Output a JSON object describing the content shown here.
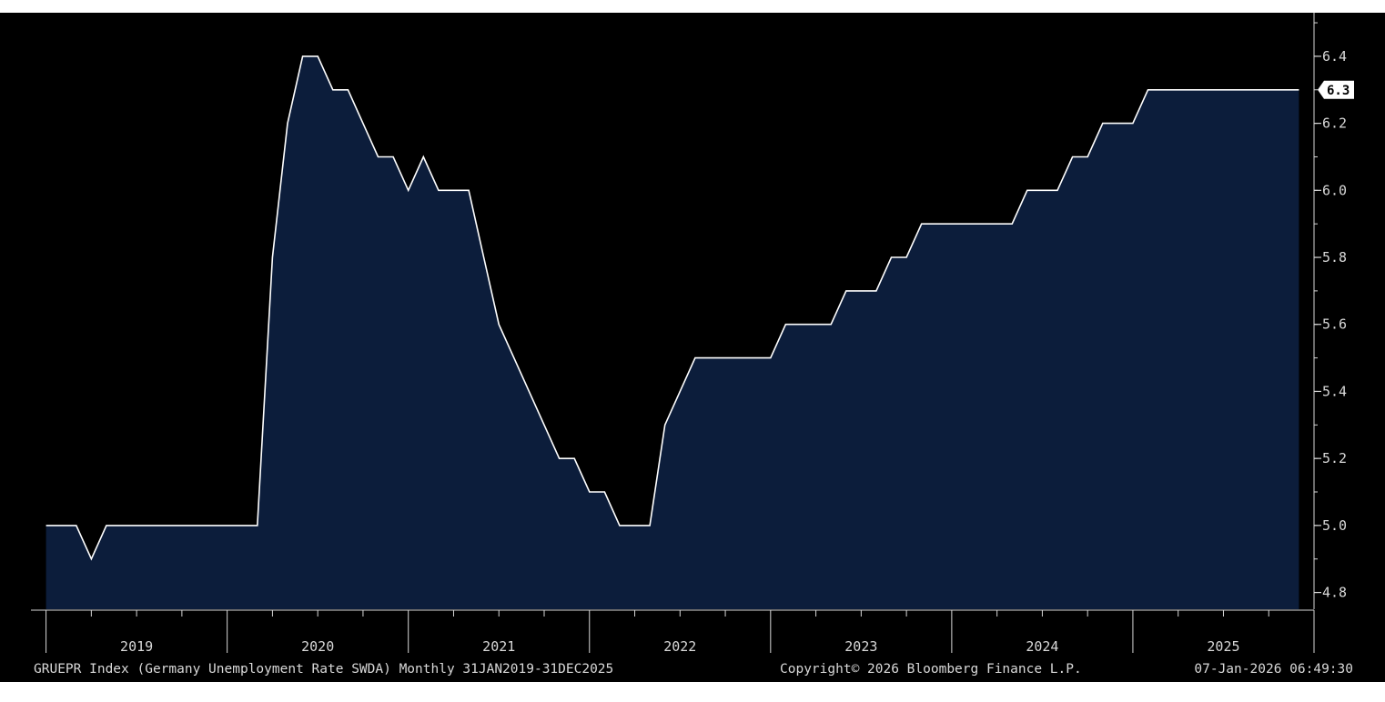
{
  "colors": {
    "background": "#000000",
    "area_fill": "#0c1d3b",
    "line": "#ffffff",
    "axis": "#d8d8d8",
    "text": "#d8d8d8",
    "last_value_tag": "#ffffff"
  },
  "footer": {
    "left": "GRUEPR Index (Germany Unemployment Rate SWDA) Monthly 31JAN2019-31DEC2025",
    "center": "Copyright© 2026 Bloomberg Finance L.P.",
    "right": "07-Jan-2026 06:49:30"
  },
  "chart_data": {
    "type": "area",
    "title": "",
    "xlabel": "",
    "ylabel": "",
    "grid": false,
    "y_axis_side": "right",
    "ylim": [
      4.75,
      6.53
    ],
    "x_start": "2019-01",
    "x_end": "2025-12",
    "x_range": [
      "2018-12",
      "2026-01"
    ],
    "yticks": [
      "6.4",
      "6.2",
      "6.0",
      "5.8",
      "5.6",
      "5.4",
      "5.2",
      "5.0",
      "4.8"
    ],
    "xtick_labels": [
      "2019",
      "2020",
      "2021",
      "2022",
      "2023",
      "2024",
      "2025"
    ],
    "last_value": "6.3",
    "series": [
      {
        "values": [
          5.0,
          5.0,
          5.0,
          4.9,
          5.0,
          5.0,
          5.0,
          5.0,
          5.0,
          5.0,
          5.0,
          5.0,
          5.0,
          5.0,
          5.0,
          5.8,
          6.2,
          6.4,
          6.4,
          6.3,
          6.3,
          6.2,
          6.1,
          6.1,
          6.0,
          6.1,
          6.0,
          6.0,
          6.0,
          5.8,
          5.6,
          5.5,
          5.4,
          5.3,
          5.2,
          5.2,
          5.1,
          5.1,
          5.0,
          5.0,
          5.0,
          5.3,
          5.4,
          5.5,
          5.5,
          5.5,
          5.5,
          5.5,
          5.5,
          5.6,
          5.6,
          5.6,
          5.6,
          5.7,
          5.7,
          5.7,
          5.8,
          5.8,
          5.9,
          5.9,
          5.9,
          5.9,
          5.9,
          5.9,
          5.9,
          6.0,
          6.0,
          6.0,
          6.1,
          6.1,
          6.2,
          6.2,
          6.2,
          6.3,
          6.3,
          6.3,
          6.3,
          6.3,
          6.3,
          6.3,
          6.3,
          6.3,
          6.3,
          6.3
        ]
      }
    ]
  }
}
